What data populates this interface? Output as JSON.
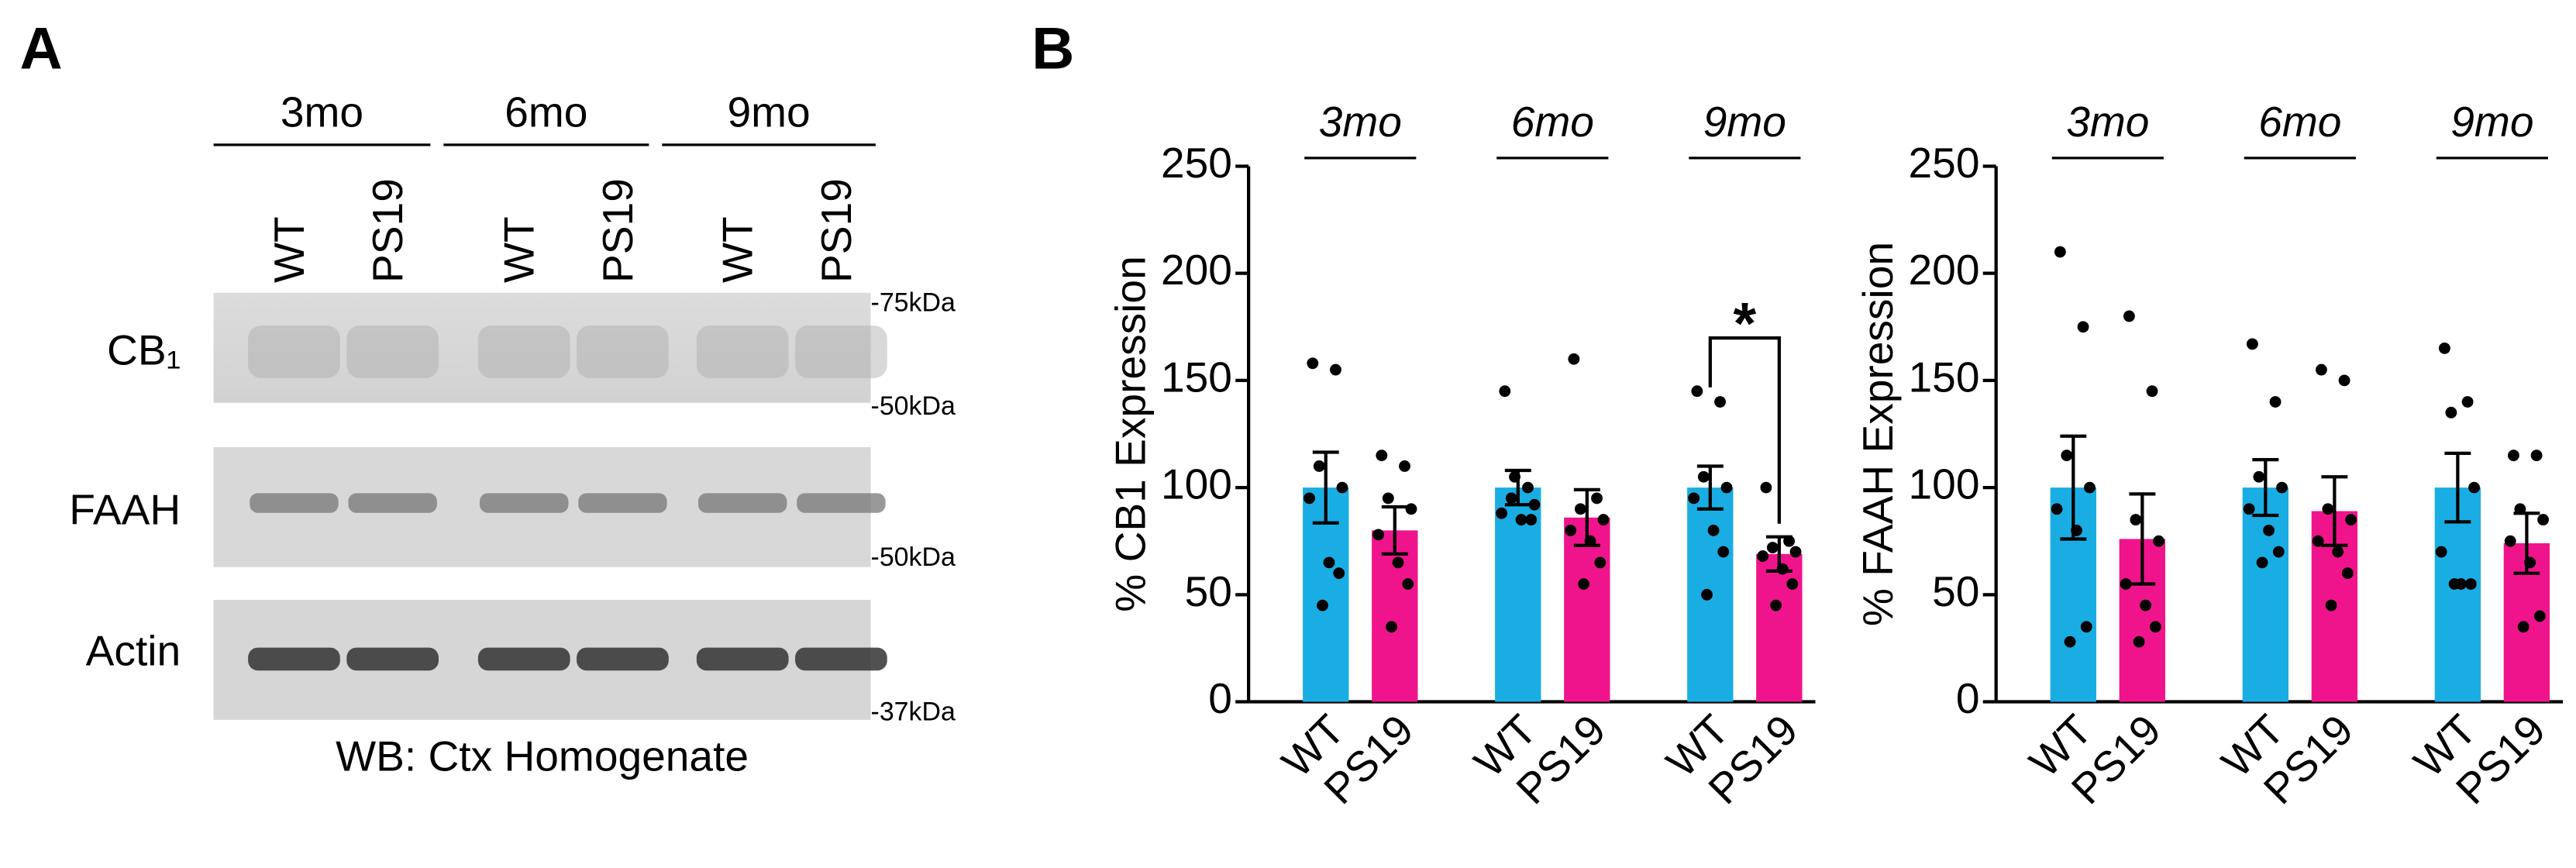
{
  "blot": {
    "label": "A",
    "ages": [
      "3mo",
      "6mo",
      "9mo"
    ],
    "lanes": [
      "WT",
      "PS19"
    ],
    "rows": [
      "CB₁",
      "FAAH",
      "Actin"
    ],
    "markers": [
      "-75kDa",
      "-50kDa",
      "-50kDa",
      "-37kDa"
    ],
    "caption": "WB: Ctx Homogenate"
  },
  "panel_b": {
    "label": "B"
  },
  "chart_data": [
    {
      "type": "bar",
      "ylabel": "% CB1 Expression",
      "groups": [
        "3mo",
        "6mo",
        "9mo"
      ],
      "ylim": [
        0,
        250
      ],
      "yticks": [
        0,
        50,
        100,
        150,
        200,
        250
      ],
      "series": [
        {
          "name": "WT",
          "color": "#1aade4",
          "values": [
            100,
            100,
            100
          ],
          "errors": [
            16.5,
            8,
            10
          ],
          "points": [
            [
              158,
              155,
              110,
              100,
              95,
              65,
              60,
              45
            ],
            [
              145,
              100,
              95,
              92,
              88,
              85,
              85,
              105
            ],
            [
              145,
              140,
              105,
              100,
              95,
              80,
              70,
              50
            ]
          ]
        },
        {
          "name": "PS19",
          "color": "#f0148c",
          "values": [
            80,
            86,
            69
          ],
          "errors": [
            11,
            13,
            8
          ],
          "points": [
            [
              115,
              110,
              95,
              90,
              78,
              65,
              55,
              35
            ],
            [
              160,
              95,
              90,
              85,
              80,
              75,
              65,
              55
            ],
            [
              100,
              75,
              72,
              70,
              68,
              62,
              55,
              45
            ]
          ]
        }
      ],
      "annotations": [
        {
          "text": "*",
          "group": 2
        }
      ]
    },
    {
      "type": "bar",
      "ylabel": "% FAAH Expression",
      "groups": [
        "3mo",
        "6mo",
        "9mo"
      ],
      "ylim": [
        0,
        250
      ],
      "yticks": [
        0,
        50,
        100,
        150,
        200,
        250
      ],
      "series": [
        {
          "name": "WT",
          "color": "#1aade4",
          "values": [
            100,
            100,
            100
          ],
          "errors": [
            24,
            13,
            16
          ],
          "points": [
            [
              210,
              175,
              115,
              100,
              90,
              80,
              35,
              28
            ],
            [
              167,
              140,
              105,
              100,
              90,
              80,
              70,
              65
            ],
            [
              165,
              140,
              135,
              100,
              70,
              55,
              55,
              55
            ]
          ]
        },
        {
          "name": "PS19",
          "color": "#f0148c",
          "values": [
            76,
            89,
            74
          ],
          "errors": [
            21,
            16,
            14
          ],
          "points": [
            [
              180,
              145,
              85,
              75,
              55,
              45,
              35,
              28
            ],
            [
              155,
              150,
              90,
              85,
              75,
              70,
              60,
              45
            ],
            [
              115,
              115,
              90,
              85,
              75,
              65,
              40,
              35
            ]
          ]
        }
      ]
    }
  ]
}
